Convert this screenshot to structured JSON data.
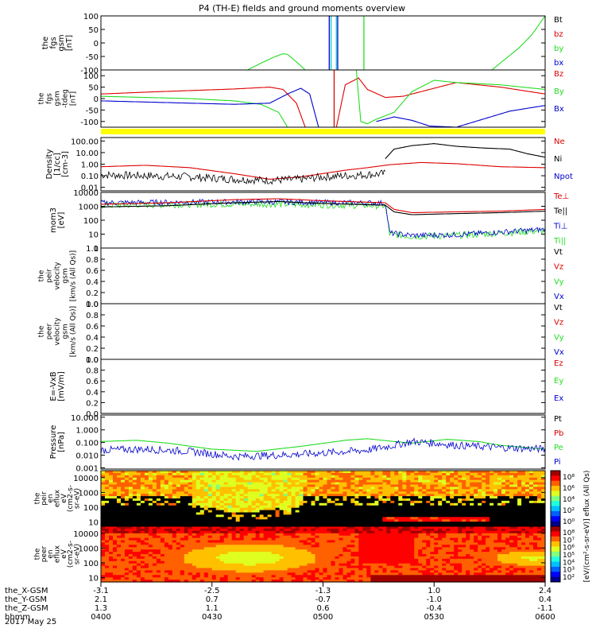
{
  "title": "P4 (TH-E) fields and ground moments overview",
  "date_label": "2017 May 25",
  "colors": {
    "black": "#000000",
    "red": "#dd0000",
    "green": "#22dd22",
    "blue": "#0000cc",
    "yellow": "#ffff00",
    "cyan": "#00cccc"
  },
  "chart_data": [
    {
      "id": "fgs",
      "type": "line",
      "ylabel": [
        "the",
        "fgs",
        "gsm",
        "[nT]"
      ],
      "ylim": [
        -100,
        100
      ],
      "yticks": [
        "100",
        "50",
        "0",
        "-50",
        "-100"
      ],
      "legend": [
        {
          "label": "Bt",
          "color": "#000000"
        },
        {
          "label": "bz",
          "color": "#dd0000"
        },
        {
          "label": "by",
          "color": "#22dd22"
        },
        {
          "label": "bx",
          "color": "#0000cc"
        }
      ],
      "series": [
        {
          "name": "by",
          "color": "#22dd22",
          "x": [
            0.33,
            0.36,
            0.39,
            0.41,
            0.42,
            0.44,
            0.46
          ],
          "y": [
            -100,
            -75,
            -52,
            -40,
            -42,
            -70,
            -100
          ]
        },
        {
          "name": "by",
          "color": "#22dd22",
          "x": [
            0.88,
            0.91,
            0.94,
            0.97,
            1.0
          ],
          "y": [
            -100,
            -60,
            -20,
            30,
            100
          ]
        }
      ],
      "spikes": [
        {
          "x": 0.514,
          "color": "#0000cc"
        },
        {
          "x": 0.518,
          "color": "#00cccc"
        },
        {
          "x": 0.53,
          "color": "#00cccc"
        },
        {
          "x": 0.533,
          "color": "#0000cc"
        },
        {
          "x": 0.592,
          "color": "#22dd22"
        }
      ]
    },
    {
      "id": "fgs-tdeg",
      "type": "line",
      "ylabel": [
        "the",
        "fgs",
        "gsm",
        "-tdeg",
        "[nT]"
      ],
      "ylim": [
        -125,
        125
      ],
      "yticks": [
        "100",
        "50",
        "0",
        "-50",
        "-100"
      ],
      "legend": [
        {
          "label": "Bz",
          "color": "#dd0000"
        },
        {
          "label": "By",
          "color": "#22dd22"
        },
        {
          "label": "Bx",
          "color": "#0000cc"
        }
      ],
      "series": [
        {
          "name": "Bz",
          "color": "#dd0000",
          "x": [
            0.0,
            0.1,
            0.2,
            0.3,
            0.38,
            0.41,
            0.44,
            0.46
          ],
          "y": [
            20,
            28,
            35,
            42,
            50,
            40,
            -20,
            -125
          ]
        },
        {
          "name": "Bz",
          "color": "#dd0000",
          "x": [
            0.53,
            0.55,
            0.58,
            0.6,
            0.64,
            0.68,
            0.8,
            0.9,
            1.0
          ],
          "y": [
            -125,
            60,
            90,
            40,
            5,
            10,
            70,
            50,
            20
          ]
        },
        {
          "name": "By",
          "color": "#22dd22",
          "x": [
            0.0,
            0.1,
            0.2,
            0.3,
            0.36,
            0.4,
            0.42
          ],
          "y": [
            10,
            5,
            0,
            -10,
            -25,
            -60,
            -125
          ]
        },
        {
          "name": "By",
          "color": "#22dd22",
          "x": [
            0.575,
            0.585,
            0.6,
            0.62,
            0.66,
            0.7,
            0.75,
            0.8,
            0.9,
            1.0
          ],
          "y": [
            125,
            -100,
            -110,
            -90,
            -60,
            30,
            80,
            70,
            60,
            40
          ]
        },
        {
          "name": "Bx",
          "color": "#0000cc",
          "x": [
            0.0,
            0.1,
            0.2,
            0.3,
            0.38,
            0.42,
            0.45,
            0.47,
            0.49
          ],
          "y": [
            -10,
            -15,
            -20,
            -25,
            -20,
            20,
            45,
            20,
            -125
          ]
        },
        {
          "name": "Bx",
          "color": "#0000cc",
          "x": [
            0.62,
            0.66,
            0.7,
            0.74,
            0.8,
            0.86,
            0.92,
            1.0
          ],
          "y": [
            -100,
            -80,
            -95,
            -120,
            -125,
            -90,
            -55,
            -30
          ]
        }
      ],
      "spikes": [
        {
          "x": 0.525,
          "color": "#dd0000"
        }
      ]
    },
    {
      "id": "density",
      "type": "line",
      "yscale": "log",
      "ylabel": [
        "Density",
        "[1/cc]",
        "[cm-3]"
      ],
      "ylim": [
        0.005,
        200
      ],
      "yticks": [
        {
          "v": 100,
          "label": "100.00"
        },
        {
          "v": 10,
          "label": "10.00"
        },
        {
          "v": 1,
          "label": "1.00"
        },
        {
          "v": 0.1,
          "label": "0.10"
        },
        {
          "v": 0.01,
          "label": "0.01"
        }
      ],
      "legend": [
        {
          "label": "Ne",
          "color": "#dd0000"
        },
        {
          "label": "Ni",
          "color": "#000000"
        },
        {
          "label": "Npot",
          "color": "#0000cc"
        }
      ],
      "series": [
        {
          "name": "Ne",
          "color": "#dd0000",
          "x": [
            0.0,
            0.1,
            0.2,
            0.3,
            0.38,
            0.45,
            0.55,
            0.6,
            0.65,
            0.72,
            0.8,
            0.9,
            1.0
          ],
          "y": [
            0.6,
            0.8,
            0.5,
            0.15,
            0.05,
            0.08,
            0.3,
            0.5,
            0.9,
            1.4,
            1.1,
            0.6,
            0.5
          ]
        },
        {
          "name": "Ni",
          "color": "#000000",
          "noise": 0.35,
          "x": [
            0.0,
            0.1,
            0.2,
            0.3,
            0.38,
            0.45,
            0.5,
            0.64
          ],
          "y": [
            0.12,
            0.1,
            0.08,
            0.05,
            0.04,
            0.05,
            0.08,
            0.15
          ]
        },
        {
          "name": "Ni",
          "color": "#000000",
          "x": [
            0.64,
            0.66,
            0.7,
            0.75,
            0.8,
            0.86,
            0.92,
            0.96,
            1.0
          ],
          "y": [
            3,
            20,
            40,
            60,
            35,
            25,
            20,
            8,
            4
          ]
        }
      ]
    },
    {
      "id": "moments",
      "type": "line",
      "yscale": "log",
      "ylabel": [
        "mom3",
        "[eV]"
      ],
      "ylim": [
        1,
        10000
      ],
      "yticks": [
        {
          "v": 10000,
          "label": "10000"
        },
        {
          "v": 1000,
          "label": "1000"
        },
        {
          "v": 100,
          "label": "100"
        },
        {
          "v": 10,
          "label": "10"
        },
        {
          "v": 1,
          "label": "1"
        }
      ],
      "legend": [
        {
          "label": "Te⊥",
          "color": "#dd0000"
        },
        {
          "label": "Te||",
          "color": "#000000"
        },
        {
          "label": "Ti⊥",
          "color": "#0000cc"
        },
        {
          "label": "Ti||",
          "color": "#22dd22"
        }
      ],
      "series": [
        {
          "name": "Ti||",
          "color": "#22dd22",
          "noise": 0.25,
          "x": [
            0.0,
            0.2,
            0.35,
            0.5,
            0.64,
            0.65,
            0.7,
            0.8,
            0.9,
            1.0
          ],
          "y": [
            1200,
            1400,
            1500,
            1300,
            1100,
            10,
            7,
            8,
            12,
            18
          ]
        },
        {
          "name": "Ti⊥",
          "color": "#0000cc",
          "noise": 0.2,
          "x": [
            0.0,
            0.2,
            0.35,
            0.5,
            0.64,
            0.65,
            0.7,
            0.8,
            0.9,
            1.0
          ],
          "y": [
            1800,
            2000,
            2100,
            1900,
            1700,
            12,
            8,
            9,
            14,
            22
          ]
        },
        {
          "name": "Te||",
          "color": "#000000",
          "x": [
            0.0,
            0.15,
            0.3,
            0.4,
            0.5,
            0.64,
            0.66,
            0.7,
            0.8,
            0.9,
            1.0
          ],
          "y": [
            900,
            1100,
            1800,
            2200,
            1600,
            1200,
            400,
            250,
            300,
            350,
            450
          ]
        },
        {
          "name": "Te⊥",
          "color": "#dd0000",
          "x": [
            0.0,
            0.15,
            0.3,
            0.4,
            0.5,
            0.64,
            0.66,
            0.7,
            0.8,
            0.9,
            1.0
          ],
          "y": [
            1400,
            1800,
            3000,
            3500,
            2500,
            1800,
            600,
            350,
            400,
            450,
            600
          ]
        }
      ]
    },
    {
      "id": "peir-vel",
      "type": "line",
      "ylabel": [
        "the",
        "peir",
        "velocity",
        "gsm",
        "[km/s (All Qs)]"
      ],
      "ylim": [
        0,
        1
      ],
      "yticks": [
        "1.0",
        "0.8",
        "0.6",
        "0.4",
        "0.2",
        "0.0"
      ],
      "legend": [
        {
          "label": "Vt",
          "color": "#000000"
        },
        {
          "label": "Vz",
          "color": "#dd0000"
        },
        {
          "label": "Vy",
          "color": "#22dd22"
        },
        {
          "label": "Vx",
          "color": "#0000cc"
        }
      ],
      "series": []
    },
    {
      "id": "peer-vel",
      "type": "line",
      "ylabel": [
        "the",
        "peer",
        "velocity",
        "gsm",
        "[km/s (All Qs)]"
      ],
      "ylim": [
        0,
        1
      ],
      "yticks": [
        "1.0",
        "0.8",
        "0.6",
        "0.4",
        "0.2",
        "0.0"
      ],
      "legend": [
        {
          "label": "Vt",
          "color": "#000000"
        },
        {
          "label": "Vz",
          "color": "#dd0000"
        },
        {
          "label": "Vy",
          "color": "#22dd22"
        },
        {
          "label": "Vx",
          "color": "#0000cc"
        }
      ],
      "series": []
    },
    {
      "id": "efield",
      "type": "line",
      "ylabel": [
        "E=-VxB",
        "[mV/m]"
      ],
      "ylim": [
        0,
        1
      ],
      "yticks": [
        "1.0",
        "0.8",
        "0.6",
        "0.4",
        "0.2",
        "0.0"
      ],
      "legend": [
        {
          "label": "Ez",
          "color": "#dd0000"
        },
        {
          "label": "Ey",
          "color": "#22dd22"
        },
        {
          "label": "Ex",
          "color": "#0000cc"
        }
      ],
      "series": []
    },
    {
      "id": "pressure",
      "type": "line",
      "yscale": "log",
      "ylabel": [
        "Pressure",
        "[nPa]"
      ],
      "ylim": [
        0.0008,
        15
      ],
      "yticks": [
        {
          "v": 10,
          "label": "10.000"
        },
        {
          "v": 1,
          "label": "1.000"
        },
        {
          "v": 0.1,
          "label": "0.100"
        },
        {
          "v": 0.01,
          "label": "0.010"
        },
        {
          "v": 0.001,
          "label": "0.001"
        }
      ],
      "legend": [
        {
          "label": "Pt",
          "color": "#000000"
        },
        {
          "label": "Pb",
          "color": "#dd0000"
        },
        {
          "label": "Pe",
          "color": "#22dd22"
        },
        {
          "label": "Pi",
          "color": "#0000cc"
        }
      ],
      "series": [
        {
          "name": "Pe",
          "color": "#22dd22",
          "x": [
            0.0,
            0.08,
            0.15,
            0.25,
            0.35,
            0.45,
            0.55,
            0.6,
            0.66,
            0.7,
            0.78,
            0.85,
            0.9,
            1.0
          ],
          "y": [
            0.12,
            0.15,
            0.09,
            0.03,
            0.02,
            0.05,
            0.15,
            0.2,
            0.12,
            0.09,
            0.18,
            0.12,
            0.06,
            0.03
          ]
        },
        {
          "name": "Pi",
          "color": "#0000cc",
          "noise": 0.3,
          "x": [
            0.0,
            0.1,
            0.2,
            0.3,
            0.4,
            0.5,
            0.6,
            0.66,
            0.7,
            0.75,
            0.8,
            0.9,
            1.0
          ],
          "y": [
            0.025,
            0.03,
            0.02,
            0.008,
            0.01,
            0.015,
            0.025,
            0.06,
            0.12,
            0.09,
            0.06,
            0.04,
            0.03
          ]
        }
      ]
    },
    {
      "id": "peir-spec",
      "type": "heatmap",
      "ylabel": [
        "the",
        "peir",
        "en",
        "eflux",
        "eV",
        "(cm2-s-",
        "sr-eV)"
      ],
      "ylim": [
        5,
        30000
      ],
      "yticks": [
        "10000",
        "1000",
        "100",
        "10"
      ]
    },
    {
      "id": "peer-spec",
      "type": "heatmap",
      "ylabel": [
        "the",
        "peer",
        "en",
        "eflux",
        "eV",
        "(cm2-s-",
        "sr-eV)"
      ],
      "ylim": [
        5,
        30000
      ],
      "yticks": [
        "10000",
        "1000",
        "100",
        "10"
      ]
    }
  ],
  "colorbars": [
    {
      "id": "cb-peir",
      "ticks": [
        "10⁸",
        "10⁶",
        "10⁴",
        "10²",
        "10⁰"
      ]
    },
    {
      "id": "cb-peer",
      "ticks": [
        "10⁸",
        "10⁷",
        "10⁶",
        "10⁵",
        "10⁴",
        "10³",
        "10²"
      ]
    }
  ],
  "colorbar_label": "[eV/(cm²-s-sr-eV)]  eflux (All Qs)",
  "xaxis": {
    "row_labels": [
      "the_X-GSM",
      "the_Y-GSM",
      "the_Z-GSM",
      "hhmm"
    ],
    "rows": [
      [
        "-3.1",
        "-2.5",
        "-1.3",
        "1.0",
        "2.4"
      ],
      [
        "2.1",
        "0.7",
        "-0.7",
        "-1.0",
        "0.4"
      ],
      [
        "1.3",
        "1.1",
        "0.6",
        "-0.4",
        "-1.1"
      ],
      [
        "0400",
        "0430",
        "0500",
        "0530",
        "0600"
      ]
    ]
  }
}
